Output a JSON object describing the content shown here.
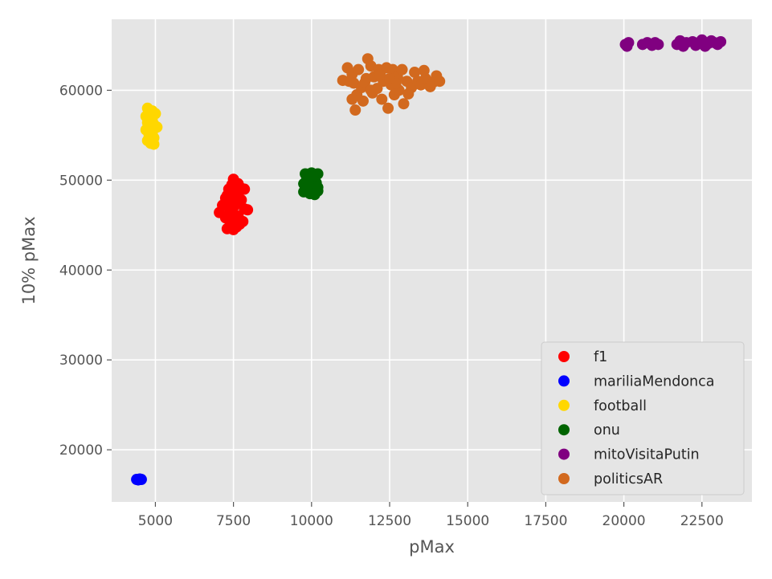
{
  "chart_data": {
    "type": "scatter",
    "title": "",
    "xlabel": "pMax",
    "ylabel": "10% pMax",
    "xlim": [
      3600,
      24100
    ],
    "ylim": [
      14200,
      67900
    ],
    "xticks": [
      5000,
      7500,
      10000,
      12500,
      15000,
      17500,
      20000,
      22500
    ],
    "yticks": [
      20000,
      30000,
      40000,
      50000,
      60000
    ],
    "xtick_labels": [
      "5000",
      "7500",
      "10000",
      "12500",
      "15000",
      "17500",
      "20000",
      "22500"
    ],
    "ytick_labels": [
      "20000",
      "30000",
      "40000",
      "50000",
      "60000"
    ],
    "grid": true,
    "background": "#e5e5e5",
    "legend_position": "lower-right",
    "series": [
      {
        "name": "f1",
        "color": "#ff0000",
        "points": [
          [
            7500,
            50100
          ],
          [
            7350,
            49000
          ],
          [
            7650,
            49600
          ],
          [
            7750,
            49100
          ],
          [
            7850,
            49000
          ],
          [
            7450,
            48500
          ],
          [
            7250,
            48000
          ],
          [
            7600,
            48200
          ],
          [
            7350,
            47600
          ],
          [
            7750,
            47800
          ],
          [
            7150,
            47200
          ],
          [
            7500,
            47000
          ],
          [
            7850,
            46800
          ],
          [
            7950,
            46700
          ],
          [
            7050,
            46400
          ],
          [
            7350,
            46200
          ],
          [
            7650,
            46000
          ],
          [
            7250,
            45800
          ],
          [
            7550,
            45500
          ],
          [
            7800,
            45400
          ],
          [
            7400,
            45000
          ],
          [
            7600,
            44800
          ],
          [
            7300,
            44600
          ],
          [
            7500,
            44500
          ],
          [
            7700,
            45100
          ],
          [
            7400,
            46800
          ],
          [
            7600,
            47500
          ],
          [
            7300,
            48300
          ],
          [
            7700,
            48800
          ],
          [
            7450,
            49500
          ]
        ]
      },
      {
        "name": "mariliaMendonca",
        "color": "#0000ff",
        "points": [
          [
            4400,
            16700
          ],
          [
            4450,
            16700
          ],
          [
            4500,
            16700
          ],
          [
            4550,
            16700
          ],
          [
            4450,
            16650
          ],
          [
            4500,
            16750
          ]
        ]
      },
      {
        "name": "football",
        "color": "#ffd700",
        "points": [
          [
            4750,
            58000
          ],
          [
            4900,
            57700
          ],
          [
            5000,
            57400
          ],
          [
            4700,
            57100
          ],
          [
            4850,
            56800
          ],
          [
            4750,
            56400
          ],
          [
            4950,
            56200
          ],
          [
            5050,
            55900
          ],
          [
            4700,
            55600
          ],
          [
            4900,
            55300
          ],
          [
            4800,
            55000
          ],
          [
            4950,
            54700
          ],
          [
            4750,
            54400
          ],
          [
            4850,
            54100
          ],
          [
            4950,
            54000
          ],
          [
            4800,
            56000
          ],
          [
            4900,
            56600
          ]
        ]
      },
      {
        "name": "onu",
        "color": "#006400",
        "points": [
          [
            9800,
            50700
          ],
          [
            10000,
            50800
          ],
          [
            10200,
            50700
          ],
          [
            9850,
            50200
          ],
          [
            10100,
            50100
          ],
          [
            9750,
            49600
          ],
          [
            9950,
            49500
          ],
          [
            10150,
            49700
          ],
          [
            9800,
            49100
          ],
          [
            10000,
            49000
          ],
          [
            10200,
            49200
          ],
          [
            9750,
            48700
          ],
          [
            9950,
            48500
          ],
          [
            10100,
            48400
          ],
          [
            10200,
            48800
          ],
          [
            9900,
            49900
          ],
          [
            10050,
            50400
          ]
        ]
      },
      {
        "name": "mitoVisitaPutin",
        "color": "#800080",
        "points": [
          [
            20050,
            65100
          ],
          [
            20150,
            65300
          ],
          [
            20100,
            64900
          ],
          [
            20600,
            65100
          ],
          [
            20750,
            65300
          ],
          [
            20900,
            65000
          ],
          [
            21000,
            65300
          ],
          [
            21100,
            65100
          ],
          [
            21700,
            65100
          ],
          [
            21800,
            65500
          ],
          [
            21900,
            64900
          ],
          [
            22000,
            65300
          ],
          [
            22200,
            65400
          ],
          [
            22300,
            65000
          ],
          [
            22400,
            65300
          ],
          [
            22500,
            65600
          ],
          [
            22600,
            64900
          ],
          [
            22700,
            65200
          ],
          [
            22800,
            65500
          ],
          [
            22900,
            65300
          ],
          [
            23000,
            65100
          ],
          [
            23100,
            65400
          ]
        ]
      },
      {
        "name": "politicsAR",
        "color": "#d2691e",
        "points": [
          [
            11000,
            61100
          ],
          [
            11150,
            62500
          ],
          [
            11300,
            61800
          ],
          [
            11350,
            60800
          ],
          [
            11450,
            59500
          ],
          [
            11500,
            62300
          ],
          [
            11600,
            60300
          ],
          [
            11650,
            58800
          ],
          [
            11750,
            61300
          ],
          [
            11800,
            63500
          ],
          [
            11900,
            62700
          ],
          [
            11950,
            59700
          ],
          [
            12000,
            61500
          ],
          [
            12100,
            60200
          ],
          [
            12150,
            62300
          ],
          [
            12250,
            59000
          ],
          [
            12300,
            61000
          ],
          [
            12400,
            62500
          ],
          [
            12450,
            58000
          ],
          [
            12550,
            60600
          ],
          [
            12600,
            62300
          ],
          [
            12650,
            59500
          ],
          [
            12750,
            61500
          ],
          [
            12800,
            60000
          ],
          [
            12900,
            62300
          ],
          [
            12950,
            58500
          ],
          [
            13050,
            61000
          ],
          [
            13200,
            60300
          ],
          [
            13300,
            62000
          ],
          [
            13400,
            61000
          ],
          [
            13500,
            60600
          ],
          [
            13650,
            61300
          ],
          [
            13800,
            60400
          ],
          [
            13900,
            60900
          ],
          [
            14000,
            61600
          ],
          [
            14100,
            61000
          ],
          [
            11400,
            57800
          ],
          [
            11300,
            59000
          ],
          [
            11700,
            60800
          ],
          [
            11900,
            60000
          ],
          [
            12200,
            61700
          ],
          [
            12700,
            60800
          ],
          [
            13100,
            59600
          ],
          [
            13600,
            62200
          ],
          [
            11200,
            61000
          ],
          [
            12500,
            61300
          ]
        ]
      }
    ]
  }
}
